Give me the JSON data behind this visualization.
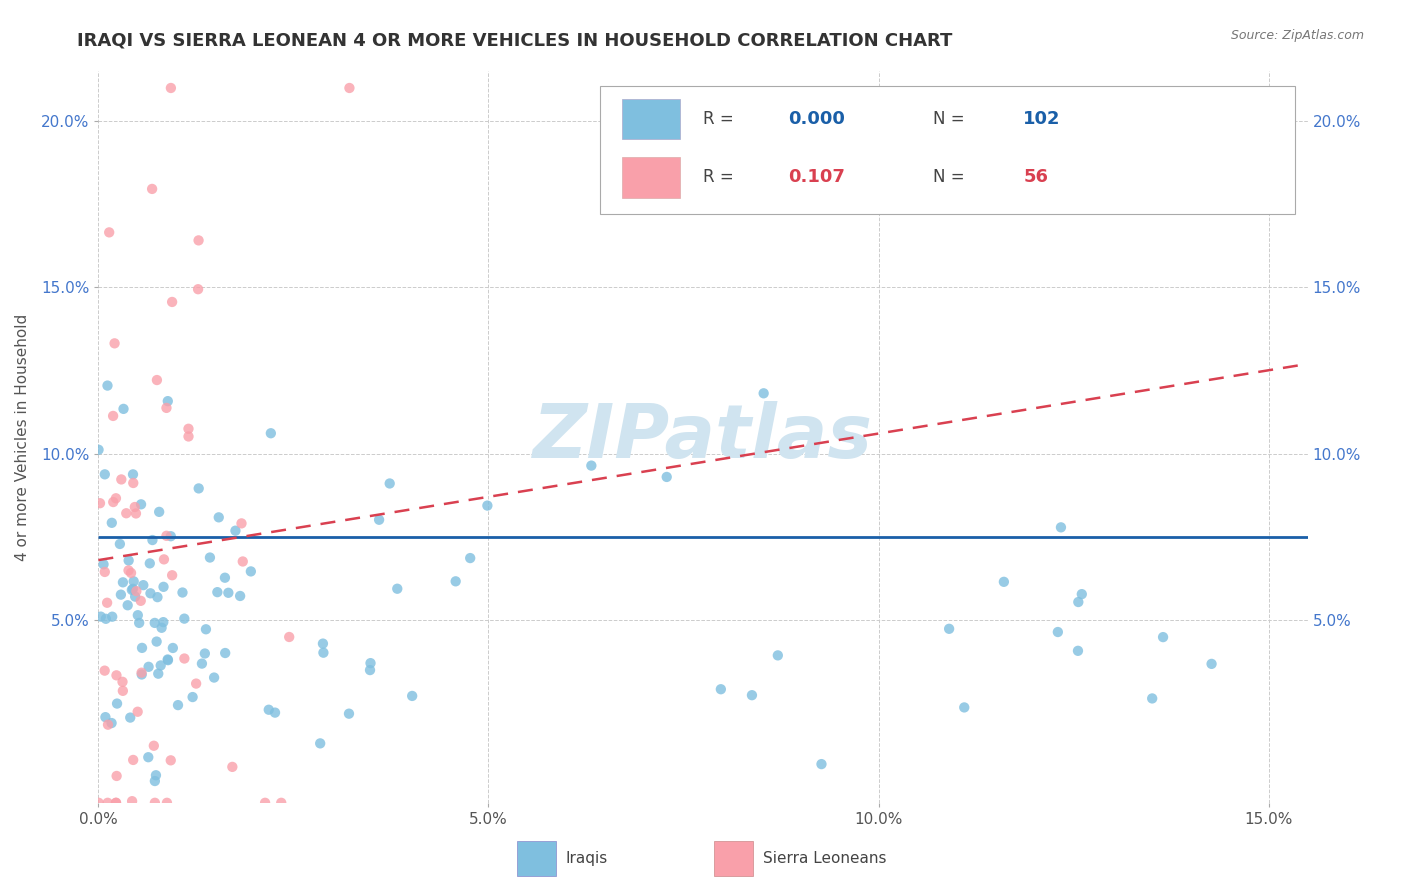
{
  "title": "IRAQI VS SIERRA LEONEAN 4 OR MORE VEHICLES IN HOUSEHOLD CORRELATION CHART",
  "source": "Source: ZipAtlas.com",
  "ylabel": "4 or more Vehicles in Household",
  "xlim": [
    0.0,
    0.155
  ],
  "ylim": [
    -0.005,
    0.215
  ],
  "xticks": [
    0.0,
    0.05,
    0.1,
    0.15
  ],
  "xtick_labels": [
    "0.0%",
    "5.0%",
    "10.0%",
    "15.0%"
  ],
  "yticks": [
    0.05,
    0.1,
    0.15,
    0.2
  ],
  "ytick_labels": [
    "5.0%",
    "10.0%",
    "15.0%",
    "20.0%"
  ],
  "iraqis_R": "0.000",
  "iraqis_N": "102",
  "sierra_R": "0.107",
  "sierra_N": "56",
  "iraqis_color": "#7fbfdf",
  "sierra_color": "#f9a0aa",
  "iraqis_line_color": "#1a5fa8",
  "sierra_line_color": "#d94050",
  "watermark": "ZIPatlas",
  "watermark_color": "#d0e4f0",
  "background_color": "#ffffff",
  "grid_color": "#cccccc",
  "iraqi_line_y": 0.075,
  "sierra_line_x0": 0.0,
  "sierra_line_y0": 0.068,
  "sierra_line_x1": 0.155,
  "sierra_line_y1": 0.127
}
